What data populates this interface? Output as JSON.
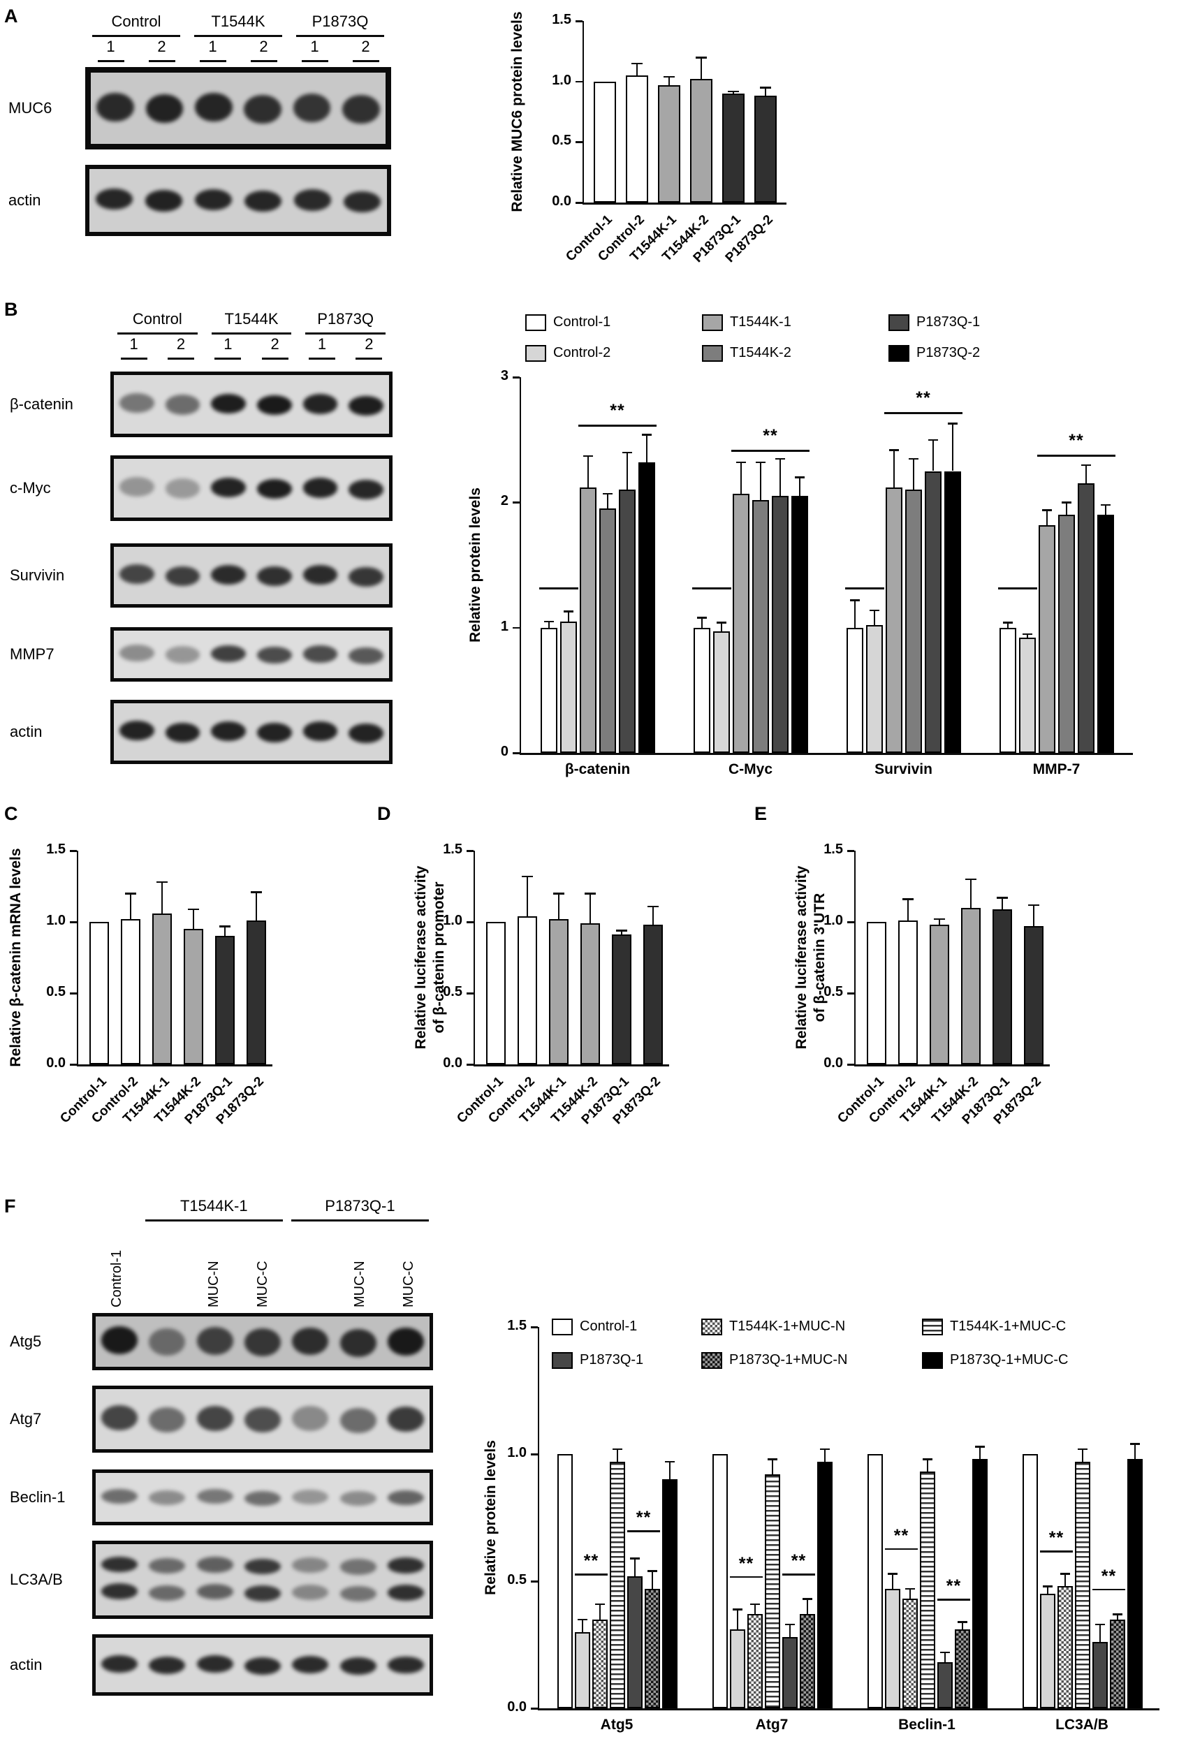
{
  "panels": {
    "A": {
      "letter": "A",
      "blot": {
        "group_headers": [
          "Control",
          "T1544K",
          "P1873Q"
        ],
        "lane_numbers": [
          "1",
          "2",
          "1",
          "2",
          "1",
          "2"
        ],
        "rows": [
          {
            "label": "MUC6",
            "bands": [
              0.88,
              0.92,
              0.9,
              0.85,
              0.82,
              0.84
            ]
          },
          {
            "label": "actin",
            "bands": [
              0.9,
              0.92,
              0.9,
              0.9,
              0.88,
              0.88
            ]
          }
        ]
      }
    },
    "B": {
      "letter": "B",
      "blot": {
        "group_headers": [
          "Control",
          "T1544K",
          "P1873Q"
        ],
        "lane_numbers": [
          "1",
          "2",
          "1",
          "2",
          "1",
          "2"
        ],
        "rows": [
          {
            "label": "β-catenin",
            "bands": [
              0.5,
              0.55,
              0.95,
              0.97,
              0.92,
              0.95
            ]
          },
          {
            "label": "c-Myc",
            "bands": [
              0.35,
              0.32,
              0.92,
              0.95,
              0.92,
              0.9
            ]
          },
          {
            "label": "Survivin",
            "bands": [
              0.75,
              0.78,
              0.88,
              0.85,
              0.88,
              0.82
            ]
          },
          {
            "label": "MMP7",
            "bands": [
              0.4,
              0.35,
              0.78,
              0.72,
              0.72,
              0.66
            ]
          },
          {
            "label": "actin",
            "bands": [
              0.92,
              0.92,
              0.92,
              0.92,
              0.92,
              0.92
            ]
          }
        ]
      }
    },
    "C": {
      "letter": "C"
    },
    "D": {
      "letter": "D"
    },
    "E": {
      "letter": "E"
    },
    "F": {
      "letter": "F",
      "blot": {
        "vertical_labels": [
          {
            "lane": 0,
            "text": "Control-1"
          },
          {
            "lane": 2,
            "text": "MUC-N"
          },
          {
            "lane": 3,
            "text": "MUC-C"
          },
          {
            "lane": 5,
            "text": "MUC-N"
          },
          {
            "lane": 6,
            "text": "MUC-C"
          }
        ],
        "groups": [
          {
            "label": "T1544K-1",
            "lanes": [
              1,
              3
            ]
          },
          {
            "label": "P1873Q-1",
            "lanes": [
              4,
              6
            ]
          }
        ],
        "rows": [
          {
            "label": "Atg5",
            "bands": [
              0.97,
              0.5,
              0.75,
              0.8,
              0.85,
              0.85,
              0.97
            ]
          },
          {
            "label": "Atg7",
            "bands": [
              0.75,
              0.55,
              0.75,
              0.7,
              0.4,
              0.55,
              0.8
            ]
          },
          {
            "label": "Beclin-1",
            "bands": [
              0.55,
              0.4,
              0.5,
              0.55,
              0.35,
              0.4,
              0.6
            ]
          },
          {
            "label": "LC3A/B",
            "double": true,
            "bands": [
              0.85,
              0.55,
              0.6,
              0.8,
              0.4,
              0.5,
              0.85
            ]
          },
          {
            "label": "actin",
            "bands": [
              0.88,
              0.88,
              0.88,
              0.88,
              0.88,
              0.88,
              0.88
            ]
          }
        ]
      }
    }
  },
  "chart_data": [
    {
      "id": "A",
      "type": "bar",
      "ylabel": "Relative MUC6 protein levels",
      "ylim": [
        0,
        1.5
      ],
      "ytick_values": [
        0,
        0.5,
        1,
        1.5
      ],
      "ytick_labels": [
        "0.0",
        "0.5",
        "1.0",
        "1.5"
      ],
      "categories": [
        "Control-1",
        "Control-2",
        "T1544K-1",
        "T1544K-2",
        "P1873Q-1",
        "P1873Q-2"
      ],
      "values": [
        1.0,
        1.05,
        0.97,
        1.02,
        0.9,
        0.88
      ],
      "errors": [
        0,
        0.1,
        0.07,
        0.18,
        0.02,
        0.07
      ],
      "bar_styles": [
        "white",
        "white",
        "gray",
        "gray",
        "charcoal",
        "charcoal"
      ]
    },
    {
      "id": "B",
      "type": "grouped-bar",
      "ylabel": "Relative protein levels",
      "ylim": [
        0,
        3
      ],
      "ytick_values": [
        0,
        1,
        2,
        3
      ],
      "ytick_labels": [
        "0",
        "1",
        "2",
        "3"
      ],
      "categories": [
        "β-catenin",
        "C-Myc",
        "Survivin",
        "MMP-7"
      ],
      "series": [
        {
          "name": "Control-1",
          "style": "white",
          "values": [
            1.0,
            1.0,
            1.0,
            1.0
          ],
          "errors": [
            0.05,
            0.08,
            0.22,
            0.04
          ]
        },
        {
          "name": "Control-2",
          "style": "lightgray",
          "values": [
            1.05,
            0.97,
            1.02,
            0.92
          ],
          "errors": [
            0.08,
            0.07,
            0.12,
            0.03
          ]
        },
        {
          "name": "T1544K-1",
          "style": "gray",
          "values": [
            2.12,
            2.07,
            2.12,
            1.82
          ],
          "errors": [
            0.25,
            0.25,
            0.3,
            0.12
          ]
        },
        {
          "name": "T1544K-2",
          "style": "midgray",
          "values": [
            1.95,
            2.02,
            2.1,
            1.9
          ],
          "errors": [
            0.12,
            0.3,
            0.25,
            0.1
          ]
        },
        {
          "name": "P1873Q-1",
          "style": "darkgray",
          "values": [
            2.1,
            2.05,
            2.25,
            2.15
          ],
          "errors": [
            0.3,
            0.3,
            0.25,
            0.15
          ]
        },
        {
          "name": "P1873Q-2",
          "style": "black",
          "values": [
            2.32,
            2.05,
            2.25,
            1.9
          ],
          "errors": [
            0.22,
            0.15,
            0.38,
            0.08
          ]
        }
      ],
      "legend": [
        {
          "label": "Control-1",
          "style": "white"
        },
        {
          "label": "T1544K-1",
          "style": "gray"
        },
        {
          "label": "P1873Q-1",
          "style": "darkgray"
        },
        {
          "label": "Control-2",
          "style": "lightgray"
        },
        {
          "label": "T1544K-2",
          "style": "midgray"
        },
        {
          "label": "P1873Q-2",
          "style": "black"
        }
      ],
      "significance": {
        "label": "**",
        "ref_span": [
          0,
          1
        ],
        "ref_y": 1.32,
        "span": [
          2,
          5
        ],
        "line_y": [
          2.62,
          2.42,
          2.72,
          2.38
        ]
      }
    },
    {
      "id": "C",
      "type": "bar",
      "ylabel": "Relative β-catenin mRNA levels",
      "ylim": [
        0,
        1.5
      ],
      "ytick_values": [
        0,
        0.5,
        1,
        1.5
      ],
      "ytick_labels": [
        "0.0",
        "0.5",
        "1.0",
        "1.5"
      ],
      "categories": [
        "Control-1",
        "Control-2",
        "T1544K-1",
        "T1544K-2",
        "P1873Q-1",
        "P1873Q-2"
      ],
      "values": [
        1.0,
        1.02,
        1.06,
        0.95,
        0.9,
        1.01
      ],
      "errors": [
        0,
        0.18,
        0.22,
        0.14,
        0.07,
        0.2
      ],
      "bar_styles": [
        "white",
        "white",
        "gray",
        "gray",
        "charcoal",
        "charcoal"
      ]
    },
    {
      "id": "D",
      "type": "bar",
      "ylabel": [
        "Relative luciferase activity",
        "of β-catenin promoter"
      ],
      "ylim": [
        0,
        1.5
      ],
      "ytick_values": [
        0,
        0.5,
        1,
        1.5
      ],
      "ytick_labels": [
        "0.0",
        "0.5",
        "1.0",
        "1.5"
      ],
      "categories": [
        "Control-1",
        "Control-2",
        "T1544K-1",
        "T1544K-2",
        "P1873Q-1",
        "P1873Q-2"
      ],
      "values": [
        1.0,
        1.04,
        1.02,
        0.99,
        0.91,
        0.98
      ],
      "errors": [
        0,
        0.28,
        0.18,
        0.21,
        0.03,
        0.13
      ],
      "bar_styles": [
        "white",
        "white",
        "gray",
        "gray",
        "charcoal",
        "charcoal"
      ]
    },
    {
      "id": "E",
      "type": "bar",
      "ylabel": [
        "Relative luciferase activity",
        "of β-catenin 3'UTR"
      ],
      "ylim": [
        0,
        1.5
      ],
      "ytick_values": [
        0,
        0.5,
        1,
        1.5
      ],
      "ytick_labels": [
        "0.0",
        "0.5",
        "1.0",
        "1.5"
      ],
      "categories": [
        "Control-1",
        "Control-2",
        "T1544K-1",
        "T1544K-2",
        "P1873Q-1",
        "P1873Q-2"
      ],
      "values": [
        1.0,
        1.01,
        0.98,
        1.1,
        1.09,
        0.97
      ],
      "errors": [
        0,
        0.15,
        0.04,
        0.2,
        0.08,
        0.15
      ],
      "bar_styles": [
        "white",
        "white",
        "gray",
        "gray",
        "charcoal",
        "charcoal"
      ]
    },
    {
      "id": "F",
      "type": "grouped-bar",
      "ylabel": "Relative protein levels",
      "ylim": [
        0,
        1.5
      ],
      "ytick_values": [
        0,
        0.5,
        1,
        1.5
      ],
      "ytick_labels": [
        "0.0",
        "0.5",
        "1.0",
        "1.5"
      ],
      "categories": [
        "Atg5",
        "Atg7",
        "Beclin-1",
        "LC3A/B"
      ],
      "series": [
        {
          "name": "Control-1",
          "style": "white",
          "values": [
            1.0,
            1.0,
            1.0,
            1.0
          ],
          "errors": [
            0,
            0,
            0,
            0
          ]
        },
        {
          "name": "T1544K-1",
          "style": "lightgray",
          "values": [
            0.3,
            0.31,
            0.47,
            0.45
          ],
          "errors": [
            0.05,
            0.08,
            0.06,
            0.03
          ]
        },
        {
          "name": "T1544K-1+MUC-N",
          "style": "checker",
          "values": [
            0.35,
            0.37,
            0.43,
            0.48
          ],
          "errors": [
            0.06,
            0.04,
            0.04,
            0.05
          ]
        },
        {
          "name": "T1544K-1+MUC-C",
          "style": "hstripe",
          "values": [
            0.97,
            0.92,
            0.93,
            0.97
          ],
          "errors": [
            0.05,
            0.06,
            0.05,
            0.05
          ]
        },
        {
          "name": "P1873Q-1",
          "style": "darkgray",
          "values": [
            0.52,
            0.28,
            0.18,
            0.26
          ],
          "errors": [
            0.07,
            0.05,
            0.04,
            0.07
          ]
        },
        {
          "name": "P1873Q-1+MUC-N",
          "style": "checkerdark",
          "values": [
            0.47,
            0.37,
            0.31,
            0.35
          ],
          "errors": [
            0.07,
            0.06,
            0.03,
            0.02
          ]
        },
        {
          "name": "P1873Q-1+MUC-C",
          "style": "black",
          "values": [
            0.9,
            0.97,
            0.98,
            0.98
          ],
          "errors": [
            0.07,
            0.05,
            0.05,
            0.06
          ]
        }
      ],
      "legend": [
        {
          "label": "Control-1",
          "style": "white"
        },
        {
          "label": "T1544K-1+MUC-N",
          "style": "checker"
        },
        {
          "label": "T1544K-1+MUC-C",
          "style": "hstripe"
        },
        {
          "label": "P1873Q-1",
          "style": "darkgray"
        },
        {
          "label": "P1873Q-1+MUC-N",
          "style": "checkerdark"
        },
        {
          "label": "P1873Q-1+MUC-C",
          "style": "black"
        }
      ],
      "significance_pairs": [
        {
          "category": 0,
          "span": [
            1,
            2
          ],
          "y": 0.53,
          "label": "**"
        },
        {
          "category": 0,
          "span": [
            4,
            5
          ],
          "y": 0.7,
          "label": "**"
        },
        {
          "category": 1,
          "span": [
            1,
            2
          ],
          "y": 0.52,
          "label": "**"
        },
        {
          "category": 1,
          "span": [
            4,
            5
          ],
          "y": 0.53,
          "label": "**"
        },
        {
          "category": 2,
          "span": [
            1,
            2
          ],
          "y": 0.63,
          "label": "**"
        },
        {
          "category": 2,
          "span": [
            4,
            5
          ],
          "y": 0.43,
          "label": "**"
        },
        {
          "category": 3,
          "span": [
            1,
            2
          ],
          "y": 0.62,
          "label": "**"
        },
        {
          "category": 3,
          "span": [
            4,
            5
          ],
          "y": 0.47,
          "label": "**"
        }
      ]
    }
  ]
}
